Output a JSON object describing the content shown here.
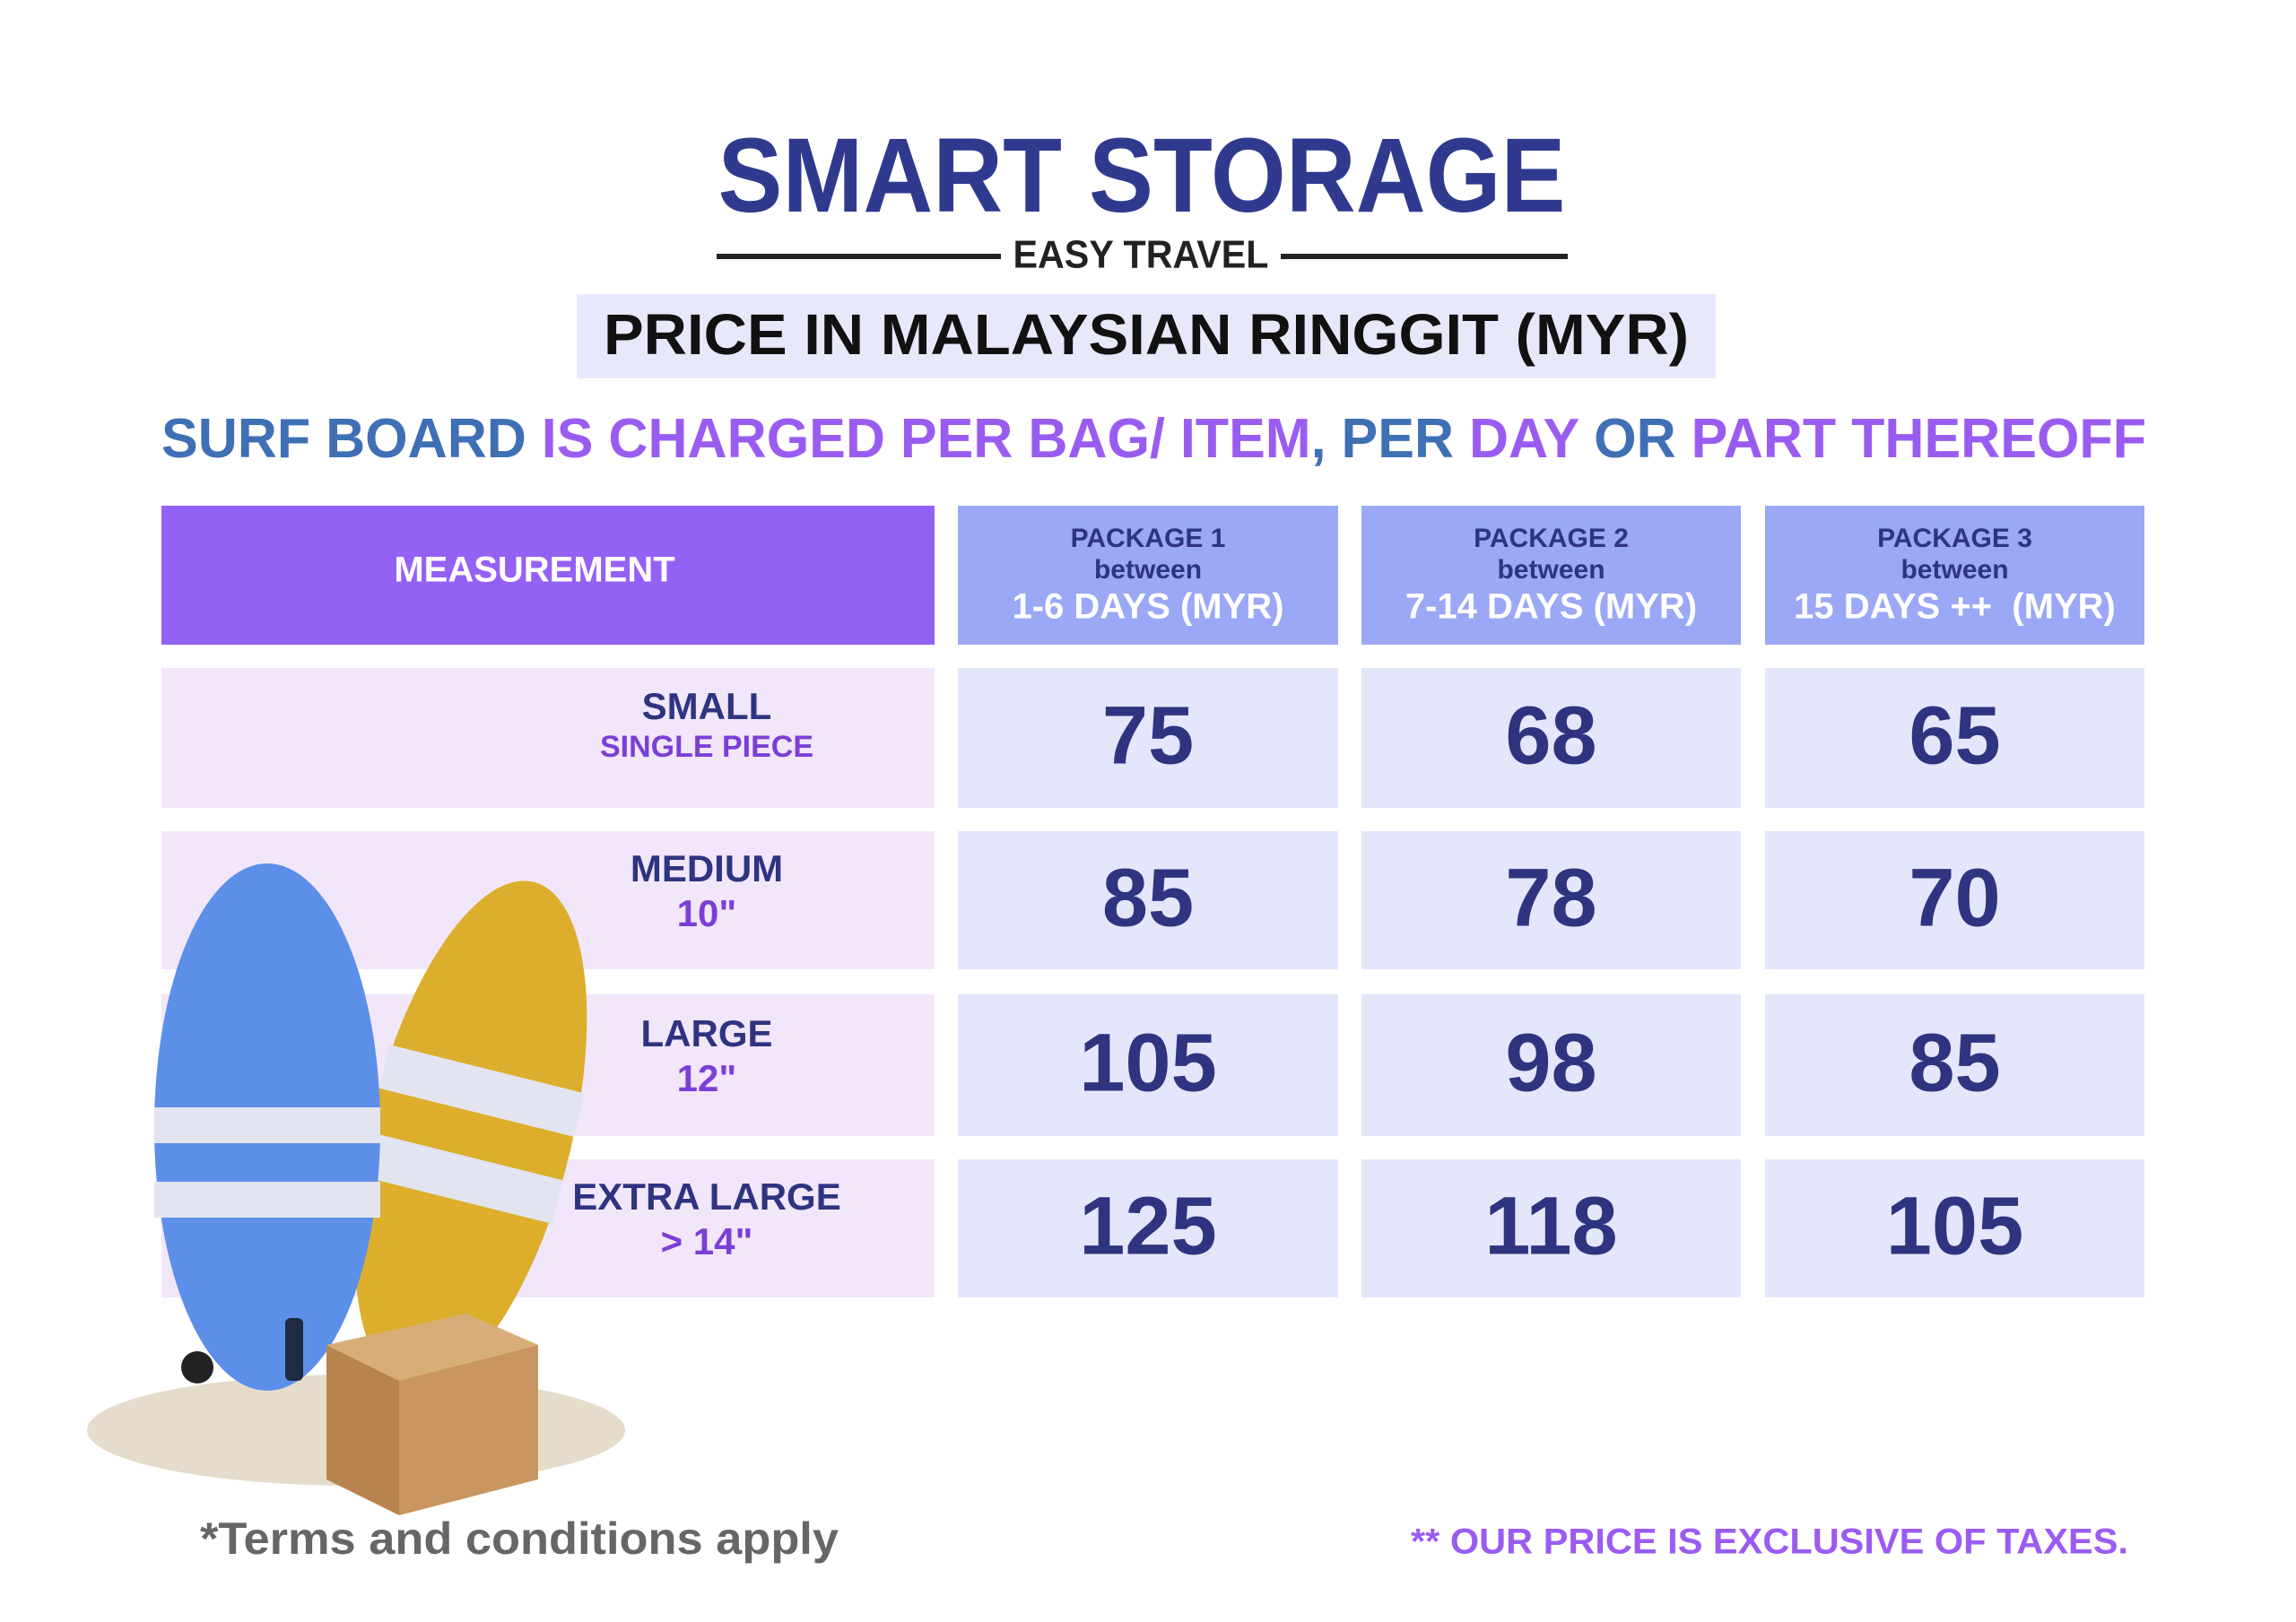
{
  "logo": {
    "name": "SMART STORAGE",
    "tagline": "EASY TRAVEL"
  },
  "price_note": "PRICE IN MALAYSIAN RINGGIT (MYR)",
  "headline": {
    "segments": [
      {
        "text": "SURF BOARD ",
        "color": "#3f6fb5"
      },
      {
        "text": "IS CHARGED PER BAG/ ITEM",
        "color": "#9a5cf0"
      },
      {
        "text": ", PER ",
        "color": "#3f6fb5"
      },
      {
        "text": "DAY",
        "color": "#9a5cf0"
      },
      {
        "text": " OR ",
        "color": "#3f6fb5"
      },
      {
        "text": "PART THEREOFF",
        "color": "#9a5cf0"
      }
    ]
  },
  "table": {
    "measurement_header": "MEASUREMENT",
    "packages": [
      {
        "name": "PACKAGE 1",
        "between": "between",
        "days": "1-6 DAYS (MYR)"
      },
      {
        "name": "PACKAGE 2",
        "between": "between",
        "days": "7-14 DAYS (MYR)"
      },
      {
        "name": "PACKAGE 3",
        "between": "between",
        "days": "15 DAYS ++  (MYR)"
      }
    ],
    "rows": [
      {
        "size": "SMALL",
        "detail": "SINGLE PIECE",
        "prices": [
          "75",
          "68",
          "65"
        ]
      },
      {
        "size": "MEDIUM",
        "detail": "10\"",
        "prices": [
          "85",
          "78",
          "70"
        ]
      },
      {
        "size": "LARGE",
        "detail": "12\"",
        "prices": [
          "105",
          "98",
          "85"
        ]
      },
      {
        "size": "EXTRA LARGE",
        "detail": "> 14\"",
        "prices": [
          "125",
          "118",
          "105"
        ]
      }
    ]
  },
  "footer": {
    "terms": "*Terms and conditions apply",
    "taxes": "** OUR PRICE IS EXCLUSIVE OF TAXES."
  }
}
